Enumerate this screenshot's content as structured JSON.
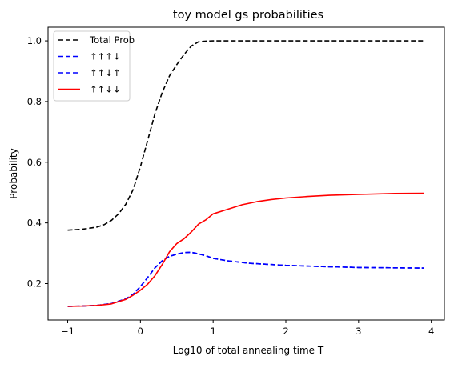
{
  "chart_data": {
    "type": "line",
    "title": "toy model gs probabilities",
    "xlabel": "Log10 of total annealing time T",
    "ylabel": "Probability",
    "xlim": [
      -1.27,
      4.18
    ],
    "ylim": [
      0.08,
      1.045
    ],
    "xticks": [
      -1,
      0,
      1,
      2,
      3,
      4
    ],
    "yticks": [
      0.2,
      0.4,
      0.6,
      0.8,
      1.0
    ],
    "xtick_labels": [
      "−1",
      "0",
      "1",
      "2",
      "3",
      "4"
    ],
    "ytick_labels": [
      "0.2",
      "0.4",
      "0.6",
      "0.8",
      "1.0"
    ],
    "grid": false,
    "legend_position": "top-left",
    "series": [
      {
        "name": "Total Prob",
        "color": "#000000",
        "dash": "dashed",
        "x": [
          -1.0,
          -0.8,
          -0.6,
          -0.5,
          -0.4,
          -0.3,
          -0.2,
          -0.1,
          0.0,
          0.1,
          0.2,
          0.3,
          0.4,
          0.5,
          0.6,
          0.7,
          0.8,
          0.9,
          1.0,
          1.2,
          1.5,
          2.0,
          2.5,
          3.0,
          3.5,
          3.9
        ],
        "y": [
          0.376,
          0.379,
          0.386,
          0.394,
          0.408,
          0.43,
          0.462,
          0.51,
          0.585,
          0.672,
          0.76,
          0.83,
          0.885,
          0.922,
          0.955,
          0.983,
          0.997,
          0.999,
          1.0,
          1.0,
          1.0,
          1.0,
          1.0,
          1.0,
          1.0,
          1.0
        ]
      },
      {
        "name": "↑↑↑↓",
        "color": "#0000ff",
        "dash": "dashed",
        "x": [
          -1.0,
          -0.8,
          -0.6,
          -0.4,
          -0.2,
          -0.1,
          0.0,
          0.1,
          0.2,
          0.3,
          0.4,
          0.5,
          0.6,
          0.7,
          0.8,
          0.9,
          1.0,
          1.2,
          1.5,
          2.0,
          2.5,
          3.0,
          3.5,
          3.9
        ],
        "y": [
          0.125,
          0.126,
          0.128,
          0.134,
          0.15,
          0.165,
          0.19,
          0.22,
          0.252,
          0.275,
          0.29,
          0.297,
          0.302,
          0.303,
          0.298,
          0.292,
          0.283,
          0.275,
          0.267,
          0.26,
          0.256,
          0.253,
          0.252,
          0.251
        ]
      },
      {
        "name": "↑↑↓↑",
        "color": "#0000ff",
        "dash": "dashed",
        "x": [
          -1.0,
          -0.8,
          -0.6,
          -0.4,
          -0.2,
          -0.1,
          0.0,
          0.1,
          0.2,
          0.3,
          0.4,
          0.5,
          0.6,
          0.7,
          0.8,
          0.9,
          1.0,
          1.2,
          1.5,
          2.0,
          2.5,
          3.0,
          3.5,
          3.9
        ],
        "y": [
          0.125,
          0.126,
          0.128,
          0.134,
          0.15,
          0.165,
          0.19,
          0.22,
          0.252,
          0.275,
          0.29,
          0.297,
          0.302,
          0.303,
          0.298,
          0.292,
          0.283,
          0.275,
          0.267,
          0.26,
          0.256,
          0.253,
          0.252,
          0.251
        ]
      },
      {
        "name": "↑↑↓↓",
        "color": "#ff0000",
        "dash": "solid",
        "x": [
          -1.0,
          -0.8,
          -0.6,
          -0.4,
          -0.2,
          -0.1,
          0.0,
          0.1,
          0.2,
          0.3,
          0.4,
          0.5,
          0.6,
          0.7,
          0.8,
          0.9,
          1.0,
          1.2,
          1.4,
          1.6,
          1.8,
          2.0,
          2.3,
          2.6,
          3.0,
          3.5,
          3.9
        ],
        "y": [
          0.125,
          0.126,
          0.128,
          0.133,
          0.148,
          0.162,
          0.178,
          0.198,
          0.226,
          0.263,
          0.305,
          0.332,
          0.348,
          0.37,
          0.396,
          0.41,
          0.43,
          0.445,
          0.46,
          0.47,
          0.477,
          0.482,
          0.487,
          0.491,
          0.494,
          0.497,
          0.498
        ]
      }
    ]
  }
}
